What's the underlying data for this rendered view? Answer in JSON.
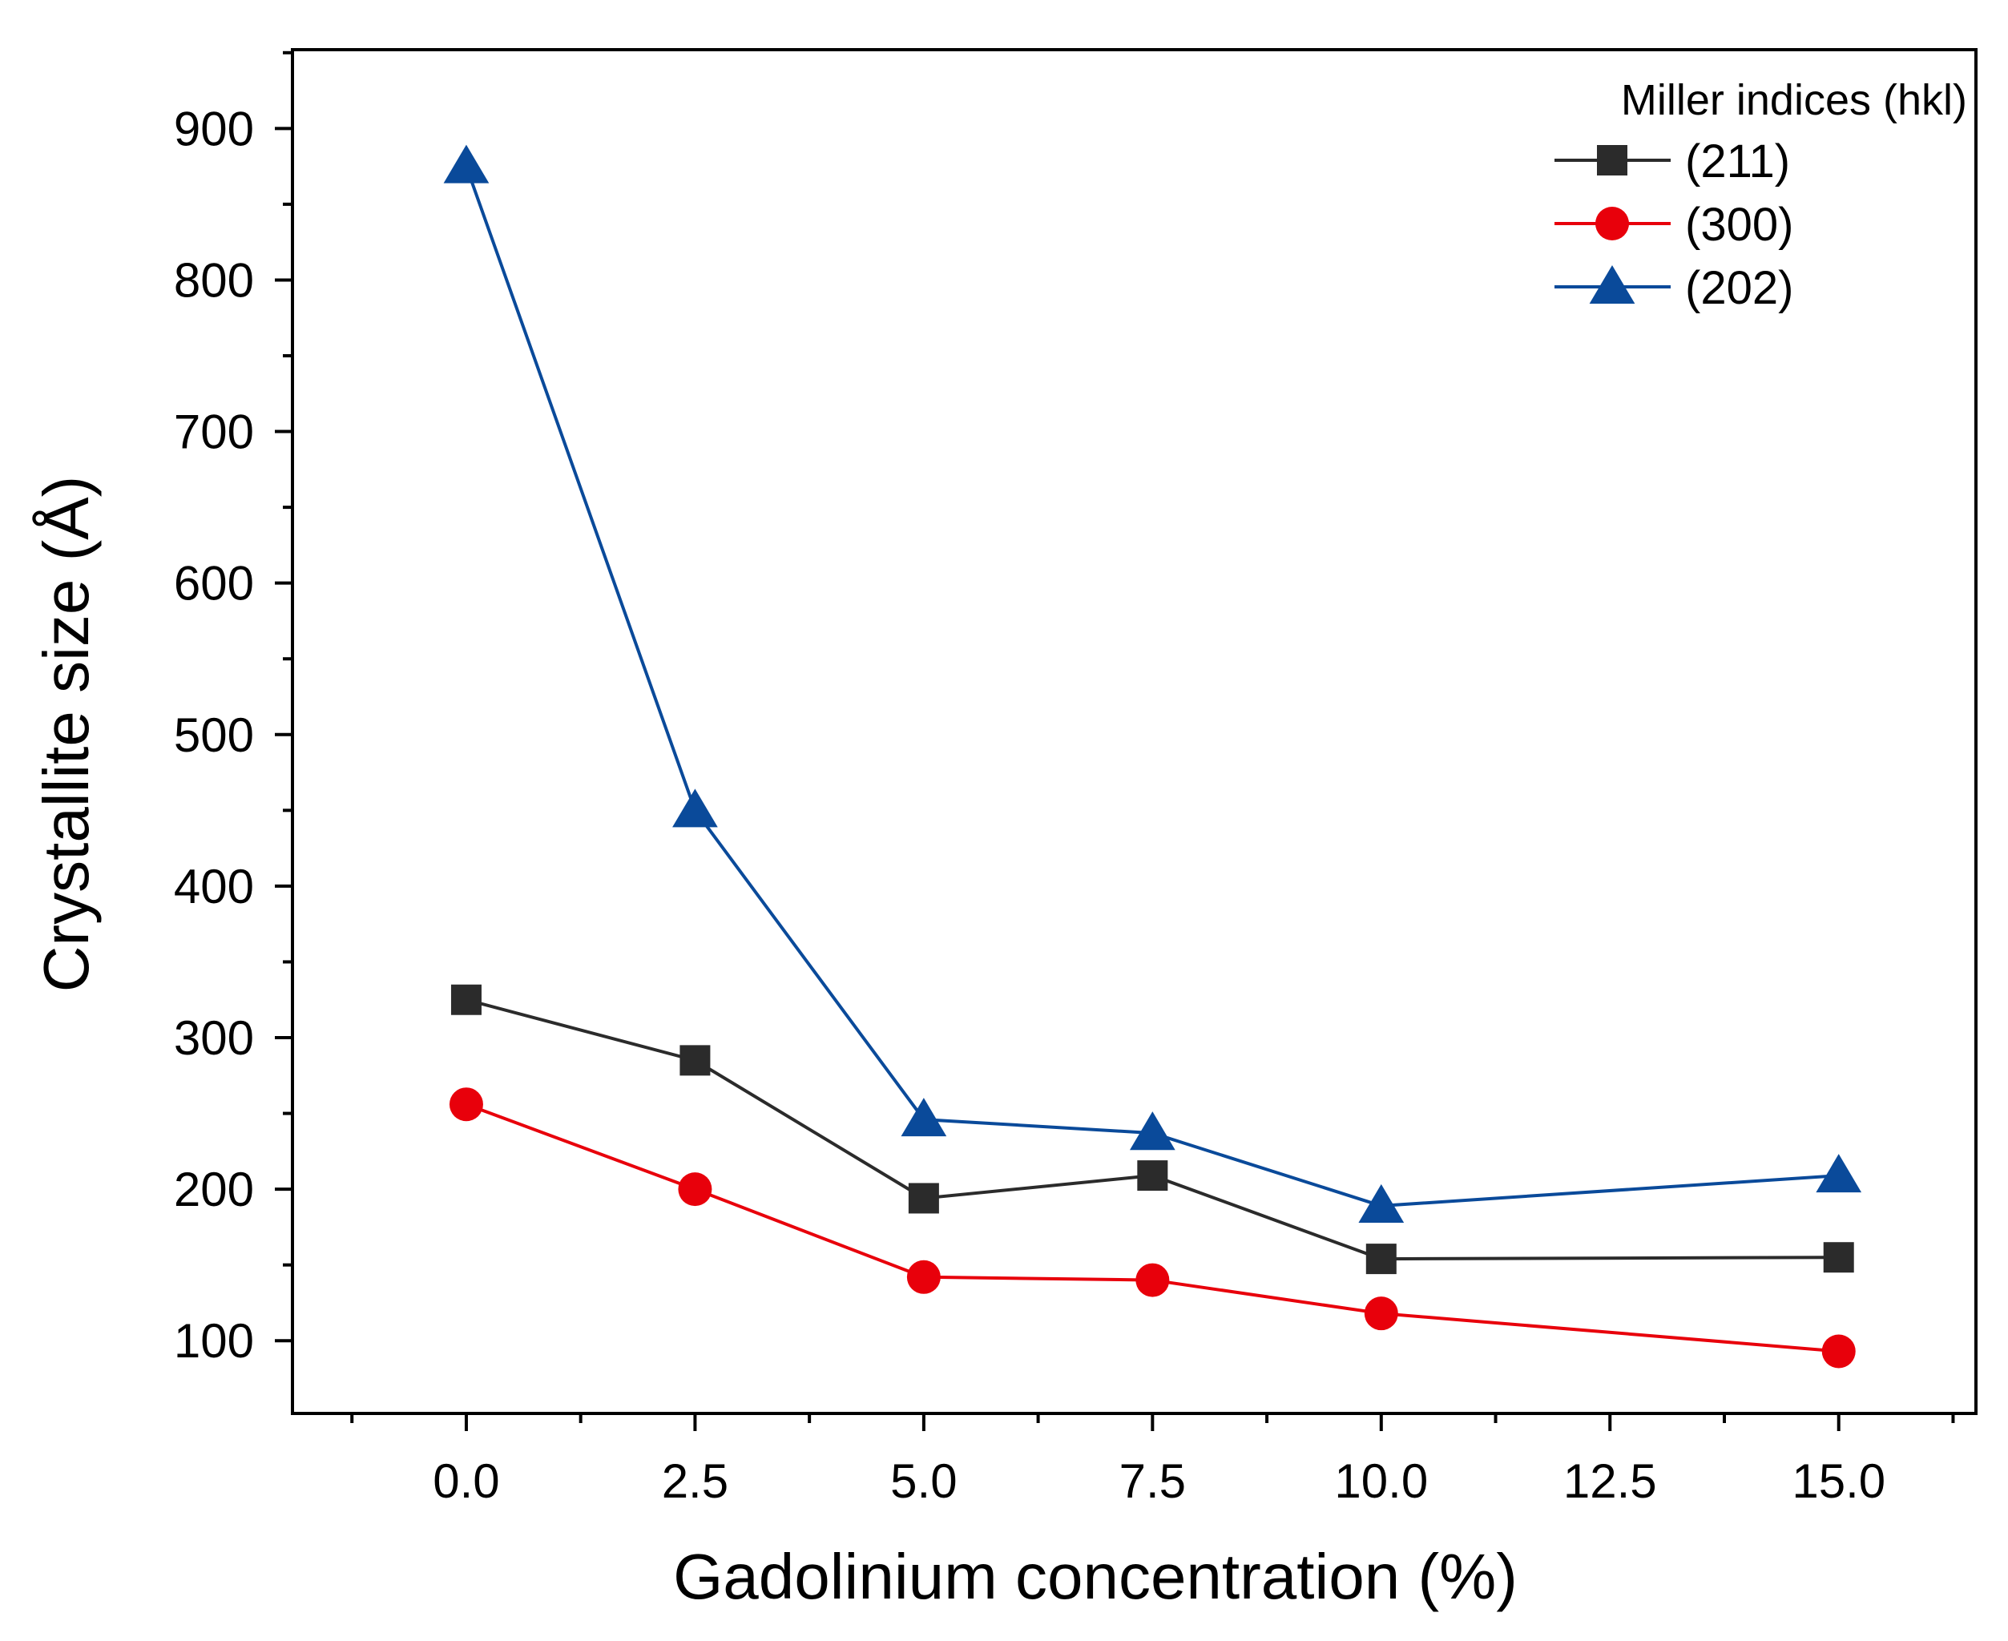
{
  "chart_data": {
    "type": "line",
    "xlabel": "Gadolinium concentration (%)",
    "ylabel": "Crystallite size (Å)",
    "xlim": [
      -1.9,
      16.5
    ],
    "ylim": [
      52,
      952
    ],
    "x_ticks": [
      0.0,
      2.5,
      5.0,
      7.5,
      10.0,
      12.5,
      15.0
    ],
    "x_tick_labels": [
      "0.0",
      "2.5",
      "5.0",
      "7.5",
      "10.0",
      "12.5",
      "15.0"
    ],
    "y_ticks": [
      100,
      200,
      300,
      400,
      500,
      600,
      700,
      800,
      900
    ],
    "y_tick_labels": [
      "100",
      "200",
      "300",
      "400",
      "500",
      "600",
      "700",
      "800",
      "900"
    ],
    "legend": {
      "title": "Miller indices (hkl)",
      "position": "top-right"
    },
    "x": [
      0.0,
      2.5,
      5.0,
      7.5,
      10.0,
      15.0
    ],
    "series": [
      {
        "name": "(211)",
        "color": "#2b2b2b",
        "marker": "square",
        "values": [
          325,
          285,
          194,
          209,
          154,
          155
        ]
      },
      {
        "name": "(300)",
        "color": "#e8000b",
        "marker": "circle",
        "values": [
          256,
          200,
          142,
          140,
          118,
          93
        ]
      },
      {
        "name": "(202)",
        "color": "#0a4a9a",
        "marker": "triangle",
        "values": [
          875,
          450,
          246,
          237,
          189,
          209
        ]
      }
    ]
  }
}
